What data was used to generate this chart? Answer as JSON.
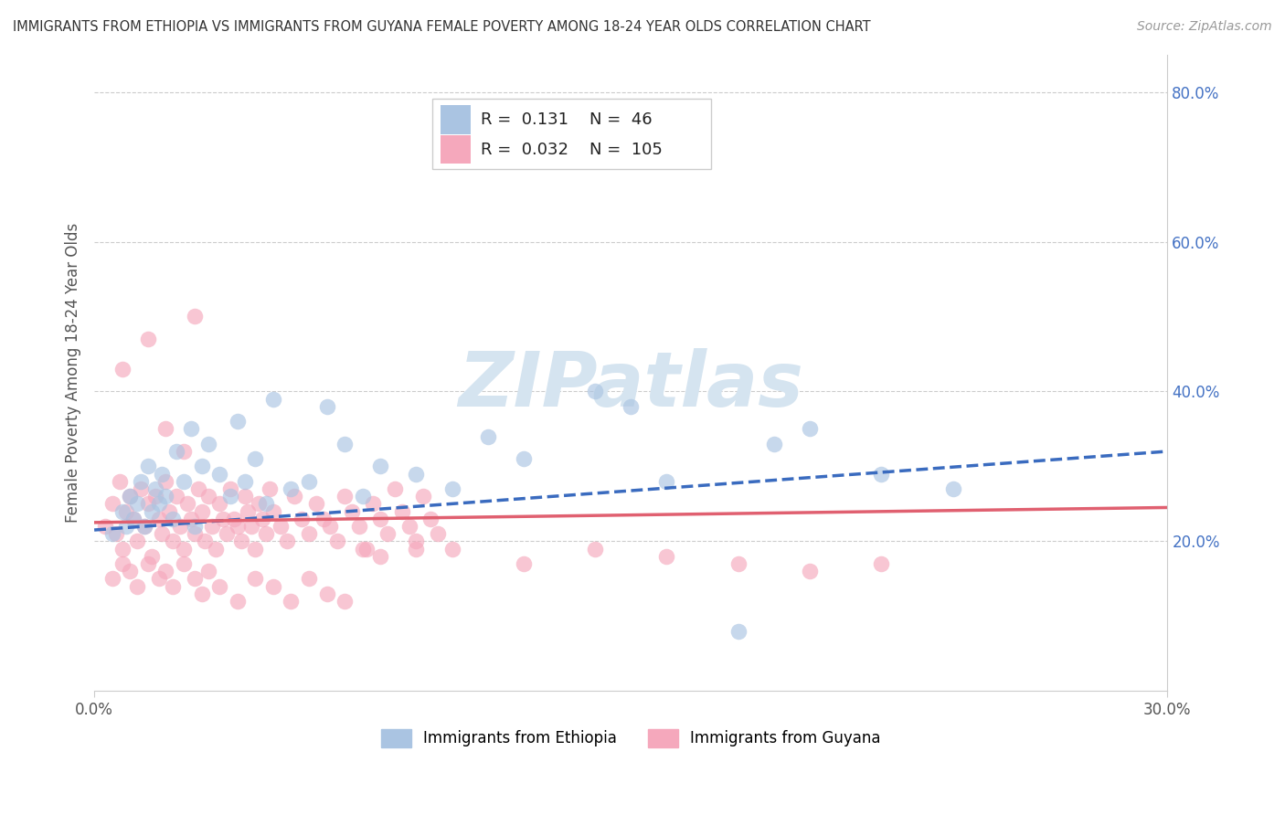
{
  "title": "IMMIGRANTS FROM ETHIOPIA VS IMMIGRANTS FROM GUYANA FEMALE POVERTY AMONG 18-24 YEAR OLDS CORRELATION CHART",
  "source": "Source: ZipAtlas.com",
  "ylabel": "Female Poverty Among 18-24 Year Olds",
  "xlim": [
    0.0,
    0.3
  ],
  "ylim": [
    0.0,
    0.85
  ],
  "ethiopia_R": 0.131,
  "ethiopia_N": 46,
  "guyana_R": 0.032,
  "guyana_N": 105,
  "ethiopia_color": "#aac4e2",
  "guyana_color": "#f5a8bc",
  "ethiopia_line_color": "#3a6bbf",
  "guyana_line_color": "#e06070",
  "watermark_text": "ZIPatlas",
  "watermark_color": "#d5e4f0",
  "legend_ethiopia_label": "Immigrants from Ethiopia",
  "legend_guyana_label": "Immigrants from Guyana",
  "background_color": "#ffffff",
  "grid_color": "#cccccc",
  "right_tick_color": "#4472c4",
  "ethiopia_scatter_x": [
    0.005,
    0.008,
    0.009,
    0.01,
    0.011,
    0.012,
    0.013,
    0.014,
    0.015,
    0.016,
    0.017,
    0.018,
    0.019,
    0.02,
    0.022,
    0.023,
    0.025,
    0.027,
    0.028,
    0.03,
    0.032,
    0.035,
    0.038,
    0.04,
    0.042,
    0.045,
    0.048,
    0.05,
    0.055,
    0.06,
    0.065,
    0.07,
    0.075,
    0.08,
    0.09,
    0.1,
    0.11,
    0.12,
    0.14,
    0.15,
    0.16,
    0.18,
    0.19,
    0.2,
    0.22,
    0.24
  ],
  "ethiopia_scatter_y": [
    0.21,
    0.24,
    0.22,
    0.26,
    0.23,
    0.25,
    0.28,
    0.22,
    0.3,
    0.24,
    0.27,
    0.25,
    0.29,
    0.26,
    0.23,
    0.32,
    0.28,
    0.35,
    0.22,
    0.3,
    0.33,
    0.29,
    0.26,
    0.36,
    0.28,
    0.31,
    0.25,
    0.39,
    0.27,
    0.28,
    0.38,
    0.33,
    0.26,
    0.3,
    0.29,
    0.27,
    0.34,
    0.31,
    0.4,
    0.38,
    0.28,
    0.08,
    0.33,
    0.35,
    0.29,
    0.27
  ],
  "guyana_scatter_x": [
    0.003,
    0.005,
    0.006,
    0.007,
    0.008,
    0.009,
    0.01,
    0.011,
    0.012,
    0.013,
    0.014,
    0.015,
    0.016,
    0.017,
    0.018,
    0.019,
    0.02,
    0.021,
    0.022,
    0.023,
    0.024,
    0.025,
    0.026,
    0.027,
    0.028,
    0.029,
    0.03,
    0.031,
    0.032,
    0.033,
    0.034,
    0.035,
    0.036,
    0.037,
    0.038,
    0.039,
    0.04,
    0.041,
    0.042,
    0.043,
    0.044,
    0.045,
    0.046,
    0.047,
    0.048,
    0.049,
    0.05,
    0.052,
    0.054,
    0.056,
    0.058,
    0.06,
    0.062,
    0.064,
    0.066,
    0.068,
    0.07,
    0.072,
    0.074,
    0.076,
    0.078,
    0.08,
    0.082,
    0.084,
    0.086,
    0.088,
    0.09,
    0.092,
    0.094,
    0.096,
    0.005,
    0.008,
    0.01,
    0.012,
    0.015,
    0.018,
    0.02,
    0.022,
    0.025,
    0.028,
    0.03,
    0.032,
    0.035,
    0.04,
    0.045,
    0.05,
    0.055,
    0.06,
    0.065,
    0.07,
    0.075,
    0.08,
    0.09,
    0.1,
    0.12,
    0.14,
    0.16,
    0.18,
    0.2,
    0.22,
    0.008,
    0.015,
    0.02,
    0.025,
    0.028
  ],
  "guyana_scatter_y": [
    0.22,
    0.25,
    0.21,
    0.28,
    0.19,
    0.24,
    0.26,
    0.23,
    0.2,
    0.27,
    0.22,
    0.25,
    0.18,
    0.26,
    0.23,
    0.21,
    0.28,
    0.24,
    0.2,
    0.26,
    0.22,
    0.19,
    0.25,
    0.23,
    0.21,
    0.27,
    0.24,
    0.2,
    0.26,
    0.22,
    0.19,
    0.25,
    0.23,
    0.21,
    0.27,
    0.23,
    0.22,
    0.2,
    0.26,
    0.24,
    0.22,
    0.19,
    0.25,
    0.23,
    0.21,
    0.27,
    0.24,
    0.22,
    0.2,
    0.26,
    0.23,
    0.21,
    0.25,
    0.23,
    0.22,
    0.2,
    0.26,
    0.24,
    0.22,
    0.19,
    0.25,
    0.23,
    0.21,
    0.27,
    0.24,
    0.22,
    0.2,
    0.26,
    0.23,
    0.21,
    0.15,
    0.17,
    0.16,
    0.14,
    0.17,
    0.15,
    0.16,
    0.14,
    0.17,
    0.15,
    0.13,
    0.16,
    0.14,
    0.12,
    0.15,
    0.14,
    0.12,
    0.15,
    0.13,
    0.12,
    0.19,
    0.18,
    0.19,
    0.19,
    0.17,
    0.19,
    0.18,
    0.17,
    0.16,
    0.17,
    0.43,
    0.47,
    0.35,
    0.32,
    0.5
  ],
  "ethiopia_trend_x0": 0.0,
  "ethiopia_trend_y0": 0.215,
  "ethiopia_trend_x1": 0.3,
  "ethiopia_trend_y1": 0.32,
  "guyana_trend_x0": 0.0,
  "guyana_trend_y0": 0.225,
  "guyana_trend_x1": 0.3,
  "guyana_trend_y1": 0.245
}
